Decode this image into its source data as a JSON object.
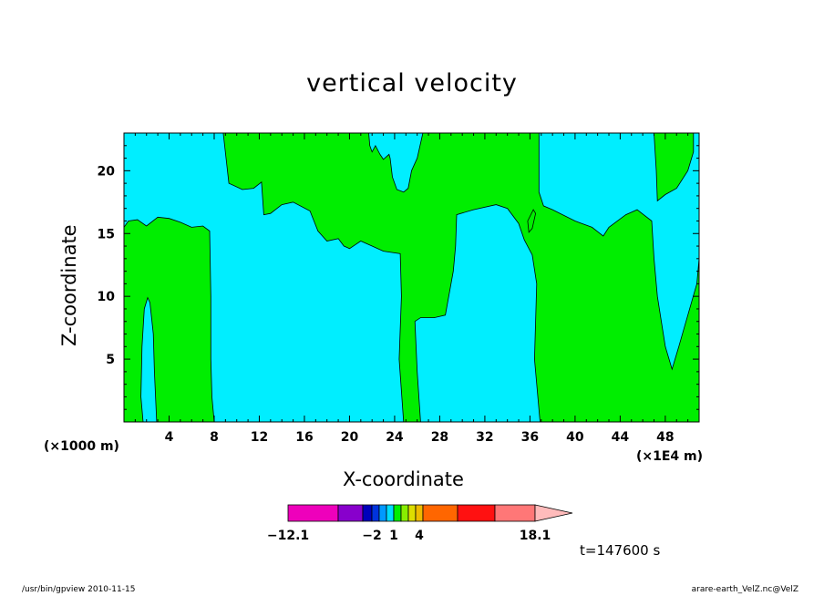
{
  "chart_data": {
    "type": "heatmap",
    "title": "vertical velocity",
    "xlabel": "X-coordinate",
    "ylabel": "Z-coordinate",
    "x_unit_left": "(×1000 m)",
    "x_unit_right": "(×1E4 m)",
    "xlim": [
      0,
      51
    ],
    "ylim": [
      0,
      23
    ],
    "x_ticks": [
      4,
      8,
      12,
      16,
      20,
      24,
      28,
      32,
      36,
      40,
      44,
      48
    ],
    "y_ticks": [
      5,
      10,
      15,
      20
    ],
    "fill_colors": {
      "negative": "#00eeff",
      "positive": "#00ee00"
    },
    "regions": [
      {
        "fill": "positive",
        "points": [
          [
            8.8,
            23
          ],
          [
            9.3,
            19
          ],
          [
            10.5,
            18.5
          ],
          [
            11.5,
            18.6
          ],
          [
            12.2,
            19.1
          ],
          [
            12.4,
            16.5
          ],
          [
            13,
            16.6
          ],
          [
            14,
            17.3
          ],
          [
            15,
            17.5
          ],
          [
            16.5,
            16.8
          ],
          [
            17.2,
            15.2
          ],
          [
            18,
            14.4
          ],
          [
            19,
            14.6
          ],
          [
            19.5,
            14
          ],
          [
            20,
            13.8
          ],
          [
            20.5,
            14.1
          ],
          [
            21,
            14.4
          ],
          [
            22,
            14
          ],
          [
            23,
            13.6
          ],
          [
            24.5,
            13.4
          ],
          [
            24.6,
            10
          ],
          [
            24.4,
            5
          ],
          [
            24.8,
            0
          ],
          [
            26.3,
            0
          ],
          [
            26,
            4
          ],
          [
            25.8,
            8
          ],
          [
            26.3,
            8.3
          ],
          [
            27.5,
            8.3
          ],
          [
            28.5,
            8.5
          ],
          [
            28.8,
            10
          ],
          [
            29.2,
            12
          ],
          [
            29.4,
            14
          ],
          [
            29.5,
            16.5
          ],
          [
            31,
            16.9
          ],
          [
            33,
            17.3
          ],
          [
            34,
            17
          ],
          [
            35,
            15.8
          ],
          [
            35.5,
            14.5
          ],
          [
            36.2,
            13.3
          ],
          [
            36.6,
            11
          ],
          [
            36.4,
            5
          ],
          [
            36.9,
            0
          ],
          [
            51,
            0
          ],
          [
            51,
            13
          ],
          [
            50.8,
            11
          ],
          [
            50,
            8.5
          ],
          [
            49.2,
            6
          ],
          [
            48.6,
            4.2
          ],
          [
            48,
            6
          ],
          [
            47.3,
            10
          ],
          [
            47,
            13
          ],
          [
            46.8,
            16
          ],
          [
            45.5,
            16.9
          ],
          [
            44.5,
            16.5
          ],
          [
            43,
            15.5
          ],
          [
            42.5,
            14.8
          ],
          [
            41.5,
            15.5
          ],
          [
            40,
            16
          ],
          [
            38,
            16.9
          ],
          [
            37.2,
            17.2
          ],
          [
            36.8,
            18.3
          ],
          [
            36.8,
            23
          ],
          [
            26.5,
            23
          ],
          [
            26,
            21
          ],
          [
            25.5,
            20
          ],
          [
            25.2,
            18.6
          ],
          [
            24.8,
            18.3
          ],
          [
            24.2,
            18.5
          ],
          [
            23.8,
            19.5
          ],
          [
            23.6,
            21
          ],
          [
            23.5,
            21.3
          ],
          [
            23,
            20.9
          ],
          [
            22.7,
            21.3
          ],
          [
            22.3,
            22
          ],
          [
            22,
            21.5
          ],
          [
            21.8,
            22
          ],
          [
            21.7,
            23
          ]
        ]
      },
      {
        "fill": "positive",
        "points": [
          [
            0,
            15.5
          ],
          [
            0.4,
            16
          ],
          [
            1.2,
            16.1
          ],
          [
            2,
            15.6
          ],
          [
            3,
            16.3
          ],
          [
            4,
            16.2
          ],
          [
            5,
            15.9
          ],
          [
            6,
            15.5
          ],
          [
            7,
            15.6
          ],
          [
            7.6,
            15.2
          ],
          [
            7.7,
            10
          ],
          [
            7.7,
            5
          ],
          [
            7.8,
            2
          ],
          [
            8,
            0
          ],
          [
            2.9,
            0
          ],
          [
            2.7,
            4
          ],
          [
            2.6,
            7
          ],
          [
            2.3,
            9.5
          ],
          [
            2.1,
            9.9
          ],
          [
            1.8,
            9
          ],
          [
            1.6,
            6
          ],
          [
            1.5,
            2
          ],
          [
            1.7,
            0
          ],
          [
            0,
            0
          ]
        ]
      },
      {
        "fill": "positive",
        "points": [
          [
            35.8,
            16
          ],
          [
            36.3,
            16.9
          ],
          [
            36.5,
            16.6
          ],
          [
            36.2,
            15.4
          ],
          [
            35.9,
            15.1
          ]
        ]
      },
      {
        "fill": "positive",
        "points": [
          [
            47,
            23
          ],
          [
            47.2,
            20
          ],
          [
            47.3,
            17.6
          ],
          [
            48,
            18.1
          ],
          [
            49,
            18.6
          ],
          [
            50,
            20
          ],
          [
            50.5,
            21.5
          ],
          [
            50.5,
            23
          ]
        ]
      }
    ]
  },
  "colorbar": {
    "colors": [
      "#ee00bb",
      "#8800cc",
      "#0000bb",
      "#0033dd",
      "#0099ff",
      "#00ddff",
      "#00ee00",
      "#88ee00",
      "#dddd00",
      "#eebb00",
      "#ff6600",
      "#ff1111",
      "#ff7777",
      "#ffbbbb"
    ],
    "labels": [
      "−12.1",
      "−2",
      "1",
      "4",
      "18.1"
    ]
  },
  "time_label": "t=147600 s",
  "footer_left": "/usr/bin/gpview   2010-11-15",
  "footer_right": "arare-earth_VelZ.nc@VelZ"
}
